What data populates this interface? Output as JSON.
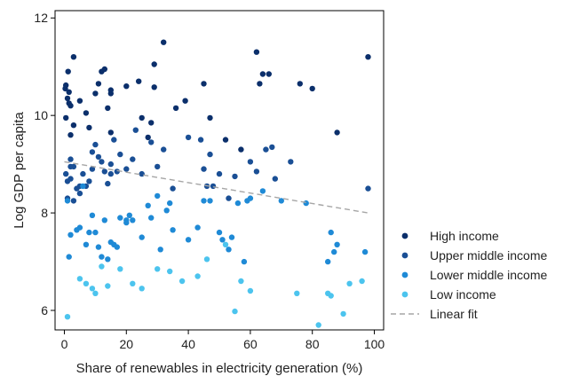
{
  "chart_data": {
    "type": "scatter",
    "title": "",
    "xlabel": "Share of renewables in electricity generation (%)",
    "ylabel": "Log GDP per capita",
    "xlim": [
      -3,
      103
    ],
    "ylim": [
      5.6,
      12.15
    ],
    "x_ticks": [
      0,
      20,
      40,
      60,
      80,
      100
    ],
    "y_ticks": [
      6,
      8,
      10,
      12
    ],
    "grid": false,
    "legend_position": "right",
    "series": [
      {
        "name": "High income",
        "color": "#0b2f6b",
        "points": [
          [
            0.3,
            10.55
          ],
          [
            0.5,
            10.62
          ],
          [
            1,
            10.35
          ],
          [
            1.5,
            10.48
          ],
          [
            0.5,
            9.95
          ],
          [
            1.5,
            10.25
          ],
          [
            2,
            10.2
          ],
          [
            1.2,
            10.9
          ],
          [
            2,
            9.6
          ],
          [
            3,
            9.8
          ],
          [
            5,
            10.3
          ],
          [
            7,
            10.05
          ],
          [
            8,
            9.75
          ],
          [
            10,
            10.45
          ],
          [
            11,
            10.65
          ],
          [
            12,
            10.9
          ],
          [
            13,
            10.95
          ],
          [
            15,
            10.45
          ],
          [
            15,
            10.52
          ],
          [
            14,
            10.15
          ],
          [
            15,
            9.65
          ],
          [
            20,
            10.6
          ],
          [
            24,
            10.7
          ],
          [
            25,
            9.95
          ],
          [
            27,
            9.55
          ],
          [
            28,
            9.85
          ],
          [
            29,
            10.58
          ],
          [
            29,
            11.05
          ],
          [
            32,
            11.5
          ],
          [
            36,
            10.15
          ],
          [
            39,
            10.3
          ],
          [
            45,
            10.65
          ],
          [
            47,
            9.95
          ],
          [
            52,
            9.5
          ],
          [
            57,
            9.3
          ],
          [
            62,
            11.3
          ],
          [
            63,
            10.65
          ],
          [
            64,
            10.85
          ],
          [
            66,
            10.85
          ],
          [
            76,
            10.65
          ],
          [
            80,
            10.55
          ],
          [
            88,
            9.65
          ],
          [
            98,
            11.2
          ],
          [
            3,
            11.2
          ]
        ]
      },
      {
        "name": "Upper middle income",
        "color": "#1a4f95",
        "points": [
          [
            0.5,
            8.8
          ],
          [
            1,
            8.65
          ],
          [
            1,
            8.3
          ],
          [
            2,
            8.7
          ],
          [
            2,
            8.95
          ],
          [
            3,
            8.25
          ],
          [
            4,
            8.5
          ],
          [
            5,
            8.4
          ],
          [
            5,
            8.55
          ],
          [
            6,
            8.8
          ],
          [
            7,
            8.55
          ],
          [
            8,
            8.65
          ],
          [
            9,
            9.25
          ],
          [
            10,
            9.4
          ],
          [
            11,
            9.15
          ],
          [
            12,
            9.05
          ],
          [
            13,
            8.85
          ],
          [
            14,
            8.6
          ],
          [
            15,
            8.8
          ],
          [
            15,
            9.0
          ],
          [
            17,
            8.85
          ],
          [
            20,
            8.9
          ],
          [
            22,
            9.1
          ],
          [
            23,
            9.7
          ],
          [
            25,
            8.8
          ],
          [
            28,
            9.45
          ],
          [
            30,
            8.95
          ],
          [
            32,
            9.3
          ],
          [
            35,
            8.5
          ],
          [
            40,
            9.55
          ],
          [
            44,
            9.5
          ],
          [
            45,
            8.9
          ],
          [
            46,
            8.55
          ],
          [
            47,
            9.2
          ],
          [
            48,
            8.55
          ],
          [
            50,
            8.8
          ],
          [
            53,
            8.3
          ],
          [
            55,
            8.75
          ],
          [
            60,
            9.05
          ],
          [
            62,
            8.85
          ],
          [
            65,
            9.3
          ],
          [
            67,
            9.35
          ],
          [
            68,
            8.7
          ],
          [
            73,
            9.05
          ],
          [
            98,
            8.5
          ],
          [
            2,
            9.1
          ],
          [
            3,
            8.95
          ],
          [
            9,
            8.9
          ],
          [
            16,
            9.5
          ],
          [
            18,
            9.2
          ]
        ]
      },
      {
        "name": "Lower middle income",
        "color": "#1f8ad6",
        "points": [
          [
            1,
            8.25
          ],
          [
            1.5,
            7.1
          ],
          [
            2,
            7.55
          ],
          [
            4,
            7.65
          ],
          [
            5,
            7.7
          ],
          [
            6,
            8.55
          ],
          [
            7,
            7.35
          ],
          [
            8,
            7.6
          ],
          [
            9,
            7.95
          ],
          [
            10,
            7.6
          ],
          [
            11,
            7.3
          ],
          [
            12,
            7.1
          ],
          [
            13,
            7.85
          ],
          [
            14,
            7.05
          ],
          [
            15,
            7.4
          ],
          [
            16,
            7.35
          ],
          [
            17,
            7.3
          ],
          [
            18,
            7.9
          ],
          [
            20,
            7.85
          ],
          [
            21,
            7.95
          ],
          [
            22,
            7.85
          ],
          [
            25,
            7.5
          ],
          [
            27,
            8.15
          ],
          [
            28,
            7.9
          ],
          [
            30,
            8.35
          ],
          [
            31,
            7.25
          ],
          [
            33,
            8.05
          ],
          [
            34,
            8.2
          ],
          [
            35,
            7.65
          ],
          [
            40,
            7.45
          ],
          [
            43,
            7.7
          ],
          [
            45,
            8.25
          ],
          [
            47,
            8.25
          ],
          [
            50,
            7.6
          ],
          [
            51,
            7.45
          ],
          [
            53,
            7.25
          ],
          [
            54,
            7.5
          ],
          [
            56,
            8.2
          ],
          [
            58,
            7.0
          ],
          [
            59,
            8.25
          ],
          [
            60,
            8.3
          ],
          [
            64,
            8.45
          ],
          [
            70,
            8.25
          ],
          [
            78,
            8.2
          ],
          [
            85,
            7.0
          ],
          [
            86,
            7.6
          ],
          [
            87,
            7.2
          ],
          [
            88,
            7.35
          ],
          [
            97,
            7.2
          ],
          [
            20,
            7.8
          ]
        ]
      },
      {
        "name": "Low income",
        "color": "#4cc4ee",
        "points": [
          [
            1,
            5.87
          ],
          [
            5,
            6.65
          ],
          [
            7,
            6.55
          ],
          [
            9,
            6.45
          ],
          [
            10,
            6.35
          ],
          [
            12,
            6.9
          ],
          [
            14,
            6.5
          ],
          [
            18,
            6.85
          ],
          [
            22,
            6.55
          ],
          [
            25,
            6.45
          ],
          [
            30,
            6.85
          ],
          [
            34,
            6.8
          ],
          [
            38,
            6.6
          ],
          [
            43,
            6.7
          ],
          [
            46,
            7.05
          ],
          [
            52,
            7.35
          ],
          [
            55,
            5.98
          ],
          [
            57,
            6.6
          ],
          [
            60,
            6.4
          ],
          [
            75,
            6.35
          ],
          [
            82,
            5.7
          ],
          [
            85,
            6.35
          ],
          [
            86,
            6.3
          ],
          [
            90,
            5.93
          ],
          [
            92,
            6.55
          ],
          [
            96,
            6.6
          ]
        ]
      }
    ],
    "fit_line": {
      "name": "Linear fit",
      "color": "#a6a6a6",
      "x": [
        0,
        98
      ],
      "y": [
        9.05,
        8.0
      ]
    }
  }
}
